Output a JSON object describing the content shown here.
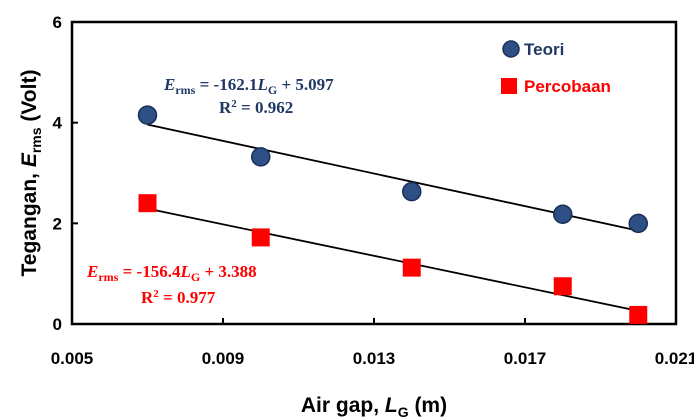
{
  "chart_data": {
    "type": "scatter",
    "title": "",
    "xlabel": "Air gap, L_G (m)",
    "ylabel": "Tegangan, E_rms (Volt)",
    "axis_titles": {
      "x": {
        "main": "Air gap, ",
        "symbol": "L",
        "sub": "G",
        "unit": " (m)"
      },
      "y": {
        "main": "Tegangan, ",
        "symbol": "E",
        "sub": "rms",
        "unit": " (Volt)"
      }
    },
    "xlim": [
      0.005,
      0.021
    ],
    "ylim": [
      0,
      6
    ],
    "xticks": [
      "0.005",
      "0.009",
      "0.013",
      "0.017",
      "0.021"
    ],
    "yticks": [
      "0",
      "2",
      "4",
      "6"
    ],
    "grid": false,
    "legend_position": "top-right",
    "series": [
      {
        "name": "Teori",
        "marker": "circle",
        "color": "#2E4E86",
        "x": [
          0.007,
          0.01,
          0.014,
          0.018,
          0.02
        ],
        "y": [
          4.15,
          3.32,
          2.63,
          2.18,
          2.0
        ],
        "trendline": {
          "slope": -162.1,
          "intercept": 5.097
        },
        "equation": {
          "lhs_symbol": "E",
          "lhs_sub": "rms",
          "rhs_a": " = -162.1",
          "rhs_symbol": "L",
          "rhs_sub": "G",
          "rhs_b": " + 5.097",
          "r2_label": "R",
          "r2_sup": "2",
          "r2_value": " = 0.962"
        },
        "equation_color": "#1F3864"
      },
      {
        "name": "Percobaan",
        "marker": "square",
        "color": "#FF0000",
        "x": [
          0.007,
          0.01,
          0.014,
          0.018,
          0.02
        ],
        "y": [
          2.4,
          1.72,
          1.12,
          0.75,
          0.18
        ],
        "trendline": {
          "slope": -156.4,
          "intercept": 3.388
        },
        "equation": {
          "lhs_symbol": "E",
          "lhs_sub": "rms",
          "rhs_a": " = -156.4",
          "rhs_symbol": "L",
          "rhs_sub": "G",
          "rhs_b": " + 3.388",
          "r2_label": "R",
          "r2_sup": "2",
          "r2_value": " = 0.977"
        },
        "equation_color": "#FF0000"
      }
    ]
  }
}
